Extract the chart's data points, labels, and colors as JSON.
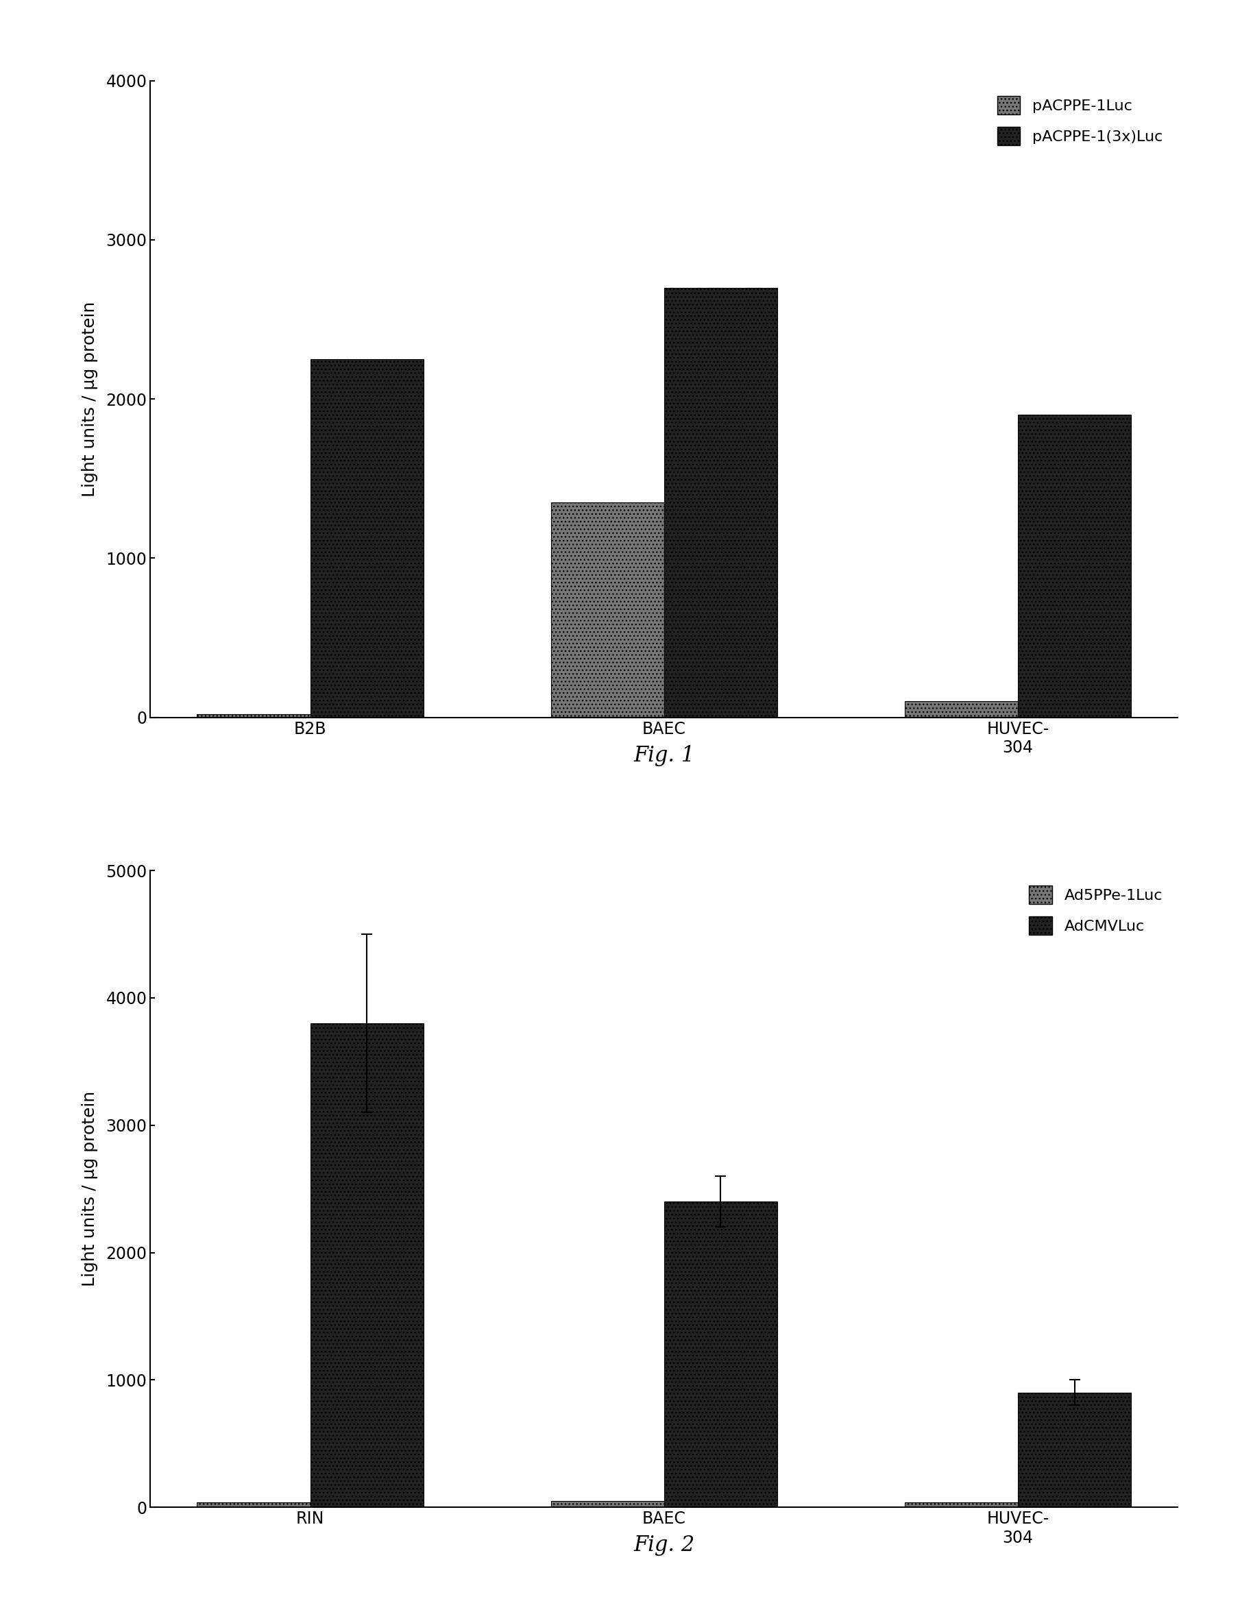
{
  "fig1": {
    "categories": [
      "B2B",
      "BAEC",
      "HUVEC-\n304"
    ],
    "series1_label": "pACPPE-1Luc",
    "series2_label": "pACPPE-1(3x)Luc",
    "series1_values": [
      20,
      1350,
      100
    ],
    "series2_values": [
      2250,
      2700,
      1900
    ],
    "ylim": [
      0,
      4000
    ],
    "yticks": [
      0,
      1000,
      2000,
      3000,
      4000
    ],
    "ylabel": "Light units / µg protein",
    "caption": "Fig. 1",
    "bar_width": 0.32,
    "color1": "#777777",
    "color2": "#222222",
    "hatch1": "...",
    "hatch2": "..."
  },
  "fig2": {
    "categories": [
      "RIN",
      "BAEC",
      "HUVEC-\n304"
    ],
    "series1_label": "Ad5PPe-1Luc",
    "series2_label": "AdCMVLuc",
    "series1_values": [
      40,
      50,
      40
    ],
    "series2_values": [
      3800,
      2400,
      900
    ],
    "series2_errors": [
      700,
      200,
      100
    ],
    "series1_errors": [
      0,
      0,
      0
    ],
    "ylim": [
      0,
      5000
    ],
    "yticks": [
      0,
      1000,
      2000,
      3000,
      4000,
      5000
    ],
    "ylabel": "Light units / µg protein",
    "caption": "Fig. 2",
    "bar_width": 0.32,
    "color1": "#777777",
    "color2": "#222222",
    "hatch1": "...",
    "hatch2": "..."
  },
  "background_color": "#ffffff",
  "figure_fontsize": 20,
  "label_fontsize": 18,
  "tick_fontsize": 17,
  "legend_fontsize": 16,
  "caption_fontsize": 22
}
